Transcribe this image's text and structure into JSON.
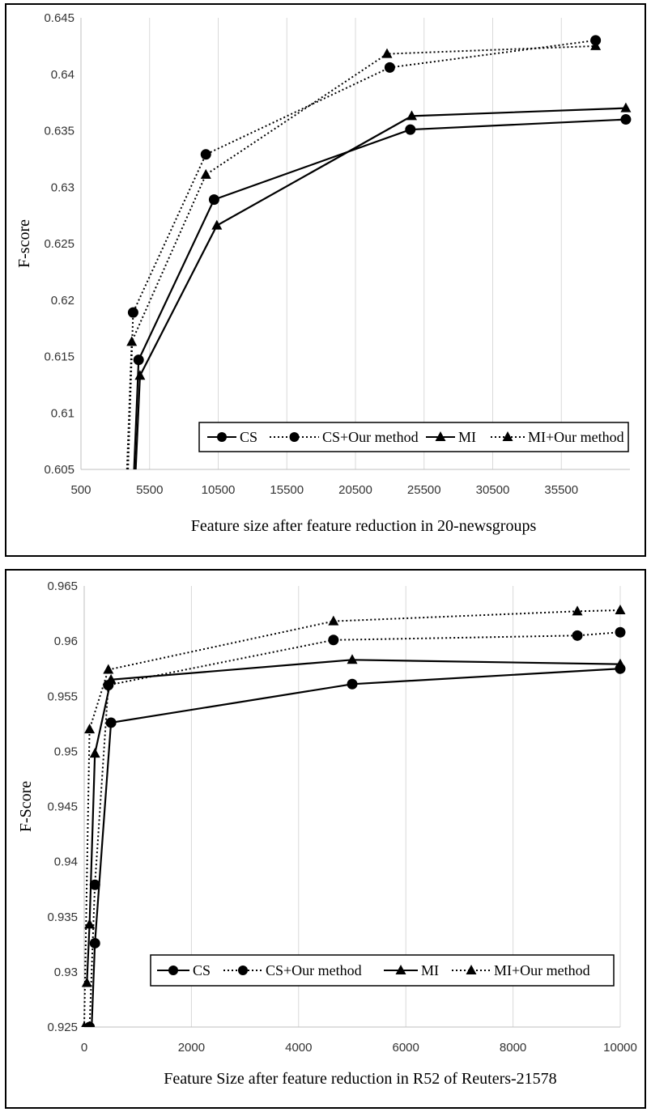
{
  "chart_data": [
    {
      "type": "line",
      "xlabel": "Feature size after feature reduction in 20-newsgroups",
      "ylabel": "F-score",
      "xlim": [
        500,
        40500
      ],
      "ylim": [
        0.605,
        0.645
      ],
      "xticks": [
        "500",
        "5500",
        "10500",
        "15500",
        "20500",
        "25500",
        "30500",
        "35500"
      ],
      "yticks": [
        "0.605",
        "0.61",
        "0.615",
        "0.62",
        "0.625",
        "0.63",
        "0.635",
        "0.64",
        "0.645"
      ],
      "grid": "vertical",
      "legend_position": "bottom-right",
      "series": [
        {
          "name": "CS",
          "style": "solid",
          "marker": "circle",
          "x": [
            4200,
            4700,
            10200,
            24500,
            40200
          ],
          "y": [
            0.6,
            0.6147,
            0.6289,
            0.6351,
            0.636
          ]
        },
        {
          "name": "CS+Our method",
          "style": "dotted",
          "marker": "circle",
          "x": [
            3800,
            4300,
            9600,
            23000,
            38000
          ],
          "y": [
            0.6,
            0.6189,
            0.6329,
            0.6406,
            0.643
          ]
        },
        {
          "name": "MI",
          "style": "solid",
          "marker": "triangle",
          "x": [
            4300,
            4800,
            10400,
            24600,
            40200
          ],
          "y": [
            0.6,
            0.6133,
            0.6266,
            0.6363,
            0.637
          ]
        },
        {
          "name": "MI+Our method",
          "style": "dotted",
          "marker": "triangle",
          "x": [
            3700,
            4200,
            9600,
            22800,
            38000
          ],
          "y": [
            0.6,
            0.6163,
            0.6311,
            0.6418,
            0.6425
          ]
        }
      ]
    },
    {
      "type": "line",
      "xlabel": "Feature Size after feature reduction in R52 of Reuters-21578",
      "ylabel": "F-Score",
      "xlim": [
        0,
        10000
      ],
      "ylim": [
        0.925,
        0.965
      ],
      "xticks": [
        "0",
        "2000",
        "4000",
        "6000",
        "8000",
        "10000"
      ],
      "yticks": [
        "0.925",
        "0.93",
        "0.935",
        "0.94",
        "0.945",
        "0.95",
        "0.955",
        "0.96",
        "0.965"
      ],
      "grid": "vertical",
      "legend_position": "bottom-right",
      "series": [
        {
          "name": "CS",
          "style": "solid",
          "marker": "circle",
          "x": [
            100,
            200,
            500,
            5000,
            10000
          ],
          "y": [
            0.92,
            0.9326,
            0.9526,
            0.9561,
            0.9575
          ]
        },
        {
          "name": "CS+Our method",
          "style": "dotted",
          "marker": "circle",
          "x": [
            100,
            200,
            450,
            4650,
            9200,
            10000
          ],
          "y": [
            0.925,
            0.9379,
            0.956,
            0.9601,
            0.9605,
            0.9608
          ]
        },
        {
          "name": "MI",
          "style": "solid",
          "marker": "triangle",
          "x": [
            50,
            100,
            200,
            500,
            5000,
            10000
          ],
          "y": [
            0.929,
            0.9343,
            0.9498,
            0.9565,
            0.9583,
            0.9579
          ]
        },
        {
          "name": "MI+Our method",
          "style": "dotted",
          "marker": "triangle",
          "x": [
            0,
            100,
            450,
            4650,
            9200,
            10000
          ],
          "y": [
            0.925,
            0.952,
            0.9574,
            0.9618,
            0.9627,
            0.9628
          ]
        }
      ]
    }
  ]
}
